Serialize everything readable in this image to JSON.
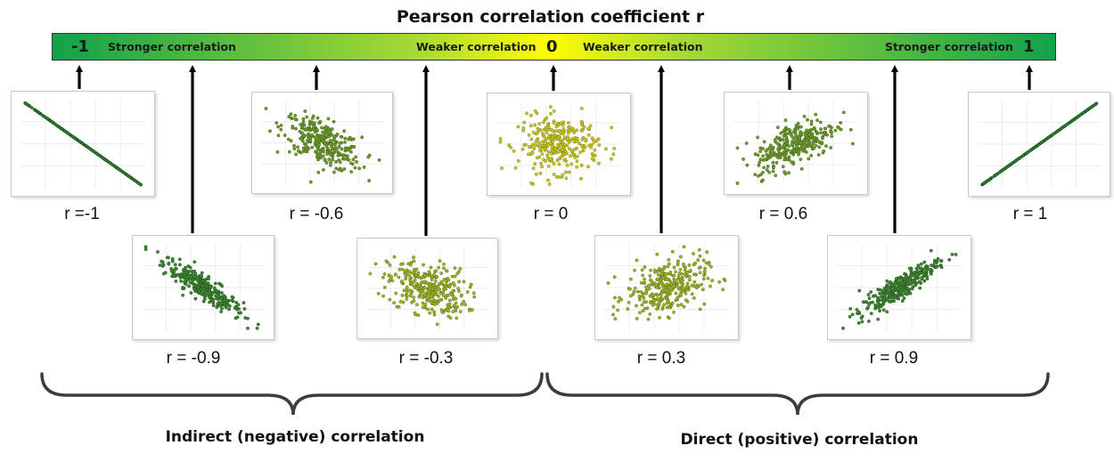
{
  "title": "Pearson correlation coefficient r",
  "scale_bar": {
    "left_value": "-1",
    "center_value": "0",
    "right_value": "1",
    "left_strength": "Stronger correlation",
    "left_weak": "Weaker correlation",
    "right_weak": "Weaker correlation",
    "right_strength": "Stronger correlation",
    "colors": {
      "strong": "#12a24b",
      "mid": "#a6d934",
      "weak": "#fffd07"
    }
  },
  "chart_data": {
    "type": "scatter",
    "panels": [
      {
        "r": -1,
        "label": "r =-1"
      },
      {
        "r": -0.9,
        "label": "r = -0.9"
      },
      {
        "r": -0.6,
        "label": "r = -0.6"
      },
      {
        "r": -0.3,
        "label": "r = -0.3"
      },
      {
        "r": 0,
        "label": "r = 0"
      },
      {
        "r": 0.3,
        "label": "r = 0.3"
      },
      {
        "r": 0.6,
        "label": "r = 0.6"
      },
      {
        "r": 0.9,
        "label": "r = 0.9"
      },
      {
        "r": 1,
        "label": "r = 1"
      }
    ],
    "point_colors": {
      "strong": "#2e7d32",
      "weak": "#c8c81e"
    },
    "points_per_panel": 300
  },
  "groups": {
    "negative": "Indirect (negative) correlation",
    "positive": "Direct (positive) correlation"
  }
}
